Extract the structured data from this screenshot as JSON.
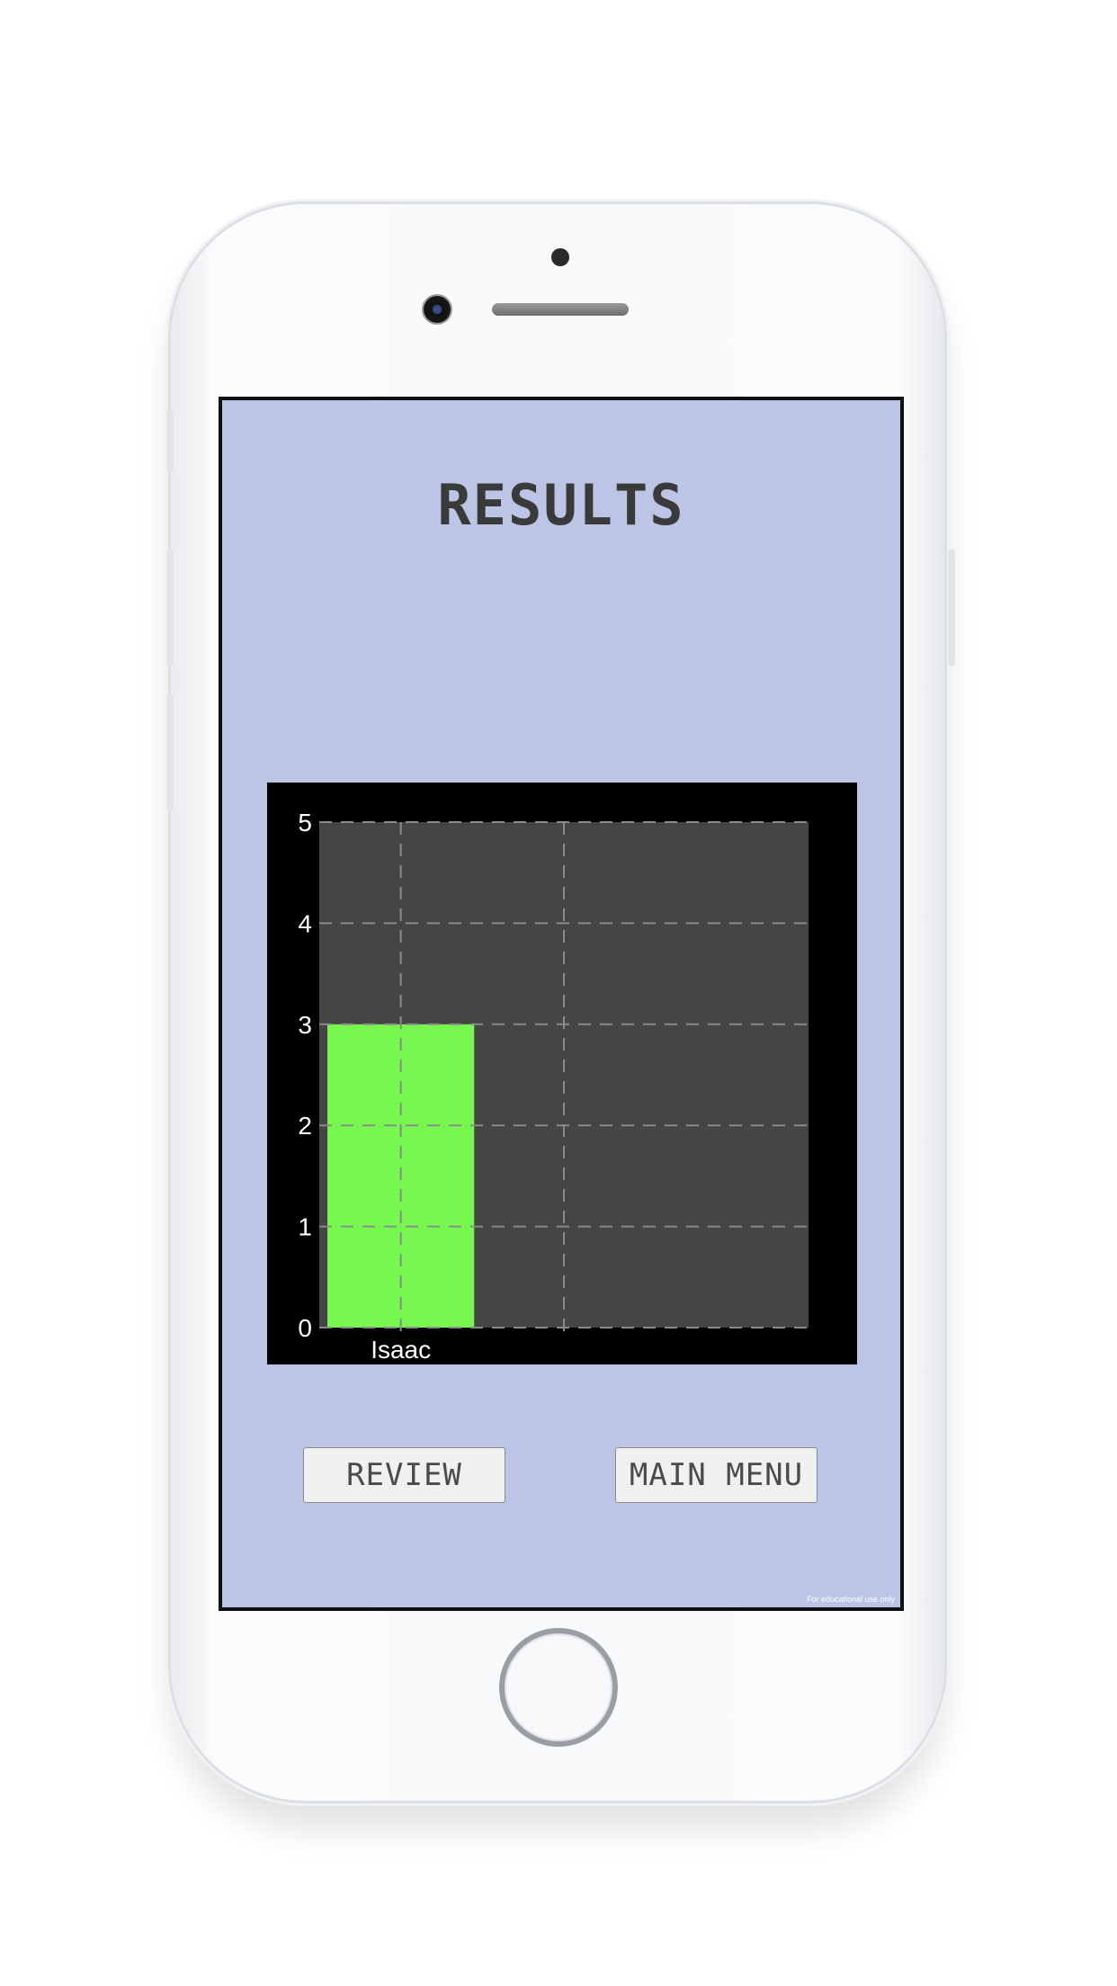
{
  "screen": {
    "title": "RESULTS",
    "background": "#bcc5e5"
  },
  "buttons": {
    "review_label": "REVIEW",
    "main_menu_label": "MAIN MENU"
  },
  "watermark": "For educational use only",
  "chart_data": {
    "type": "bar",
    "categories": [
      "Isaac"
    ],
    "values": [
      3
    ],
    "ylim": [
      0,
      5
    ],
    "yticks": [
      0,
      1,
      2,
      3,
      4,
      5
    ],
    "grid": true,
    "bar_color": "#76f84f",
    "plot_background": "#454545",
    "title": "",
    "xlabel": "",
    "ylabel": ""
  }
}
